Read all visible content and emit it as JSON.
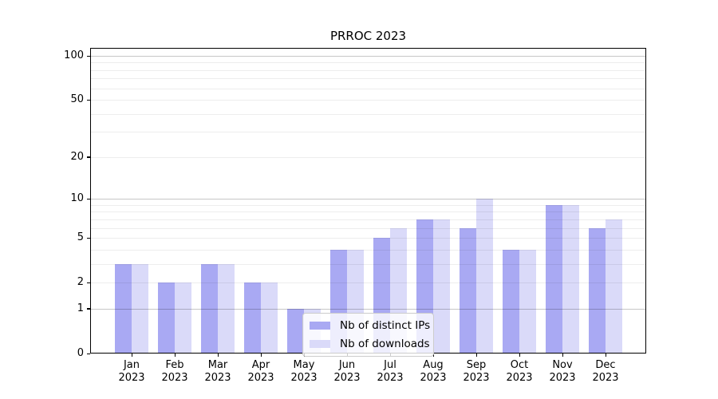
{
  "window": {
    "background": "#ffffff"
  },
  "chart_data": {
    "type": "bar",
    "title": "PRROC 2023",
    "categories": [
      "Jan 2023",
      "Feb 2023",
      "Mar 2023",
      "Apr 2023",
      "May 2023",
      "Jun 2023",
      "Jul 2023",
      "Aug 2023",
      "Sep 2023",
      "Oct 2023",
      "Nov 2023",
      "Dec 2023"
    ],
    "category_line1": [
      "Jan",
      "Feb",
      "Mar",
      "Apr",
      "May",
      "Jun",
      "Jul",
      "Aug",
      "Sep",
      "Oct",
      "Nov",
      "Dec"
    ],
    "category_line2": [
      "2023",
      "2023",
      "2023",
      "2023",
      "2023",
      "2023",
      "2023",
      "2023",
      "2023",
      "2023",
      "2023",
      "2023"
    ],
    "series": [
      {
        "name": "Nb of distinct IPs",
        "color": "#a9a9f3",
        "values": [
          3,
          2,
          3,
          2,
          1,
          4,
          5,
          7,
          6,
          4,
          9,
          6
        ]
      },
      {
        "name": "Nb of downloads",
        "color": "#dadaf9",
        "values": [
          3,
          2,
          3,
          2,
          1,
          4,
          6,
          7,
          10,
          4,
          9,
          7
        ]
      }
    ],
    "xlabel": "",
    "ylabel": "",
    "yscale": "log1p",
    "ylim": [
      0,
      110
    ],
    "yticks": [
      0,
      1,
      2,
      5,
      10,
      20,
      50,
      100
    ],
    "major_gridlines": [
      1,
      10,
      100
    ],
    "minor_gridlines": [
      2,
      3,
      4,
      5,
      6,
      7,
      8,
      9,
      20,
      30,
      40,
      50,
      60,
      70,
      80,
      90
    ],
    "grid": "horizontal",
    "legend_position": "inside-bottom-center"
  }
}
